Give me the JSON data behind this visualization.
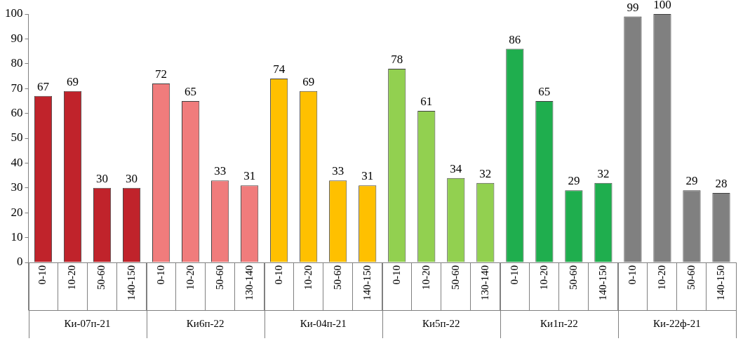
{
  "chart_data": {
    "type": "bar",
    "categories": [
      "0-10",
      "10-20",
      "50-60",
      "140-150",
      "0-10",
      "10-20",
      "50-60",
      "130-140",
      "0-10",
      "10-20",
      "50-60",
      "140-150",
      "0-10",
      "10-20",
      "50-60",
      "130-140",
      "0-10",
      "10-20",
      "50-60",
      "140-150",
      "0-10",
      "10-20",
      "50-60",
      "140-150"
    ],
    "values": [
      67,
      69,
      30,
      30,
      72,
      65,
      33,
      31,
      74,
      69,
      33,
      31,
      78,
      61,
      34,
      32,
      86,
      65,
      29,
      32,
      99,
      100,
      29,
      28
    ],
    "colors": [
      "#c0232b",
      "#c0232b",
      "#c0232b",
      "#c0232b",
      "#f07c7c",
      "#f07c7c",
      "#f07c7c",
      "#f07c7c",
      "#ffc000",
      "#ffc000",
      "#ffc000",
      "#ffc000",
      "#92d050",
      "#92d050",
      "#92d050",
      "#92d050",
      "#1fae4e",
      "#1fae4e",
      "#1fae4e",
      "#1fae4e",
      "#808080",
      "#808080",
      "#808080",
      "#808080"
    ],
    "annotations": [
      "Ки-07п-21",
      "Ки6п-22",
      "Ки-04п-21",
      "Ки5п-22",
      "Ки1п-22",
      "Ки-22ф-21"
    ],
    "ylim": [
      0,
      100
    ],
    "yticks": [
      0,
      10,
      20,
      30,
      40,
      50,
      60,
      70,
      80,
      90,
      100
    ],
    "grid": false,
    "legend": false,
    "data_labels": true
  }
}
